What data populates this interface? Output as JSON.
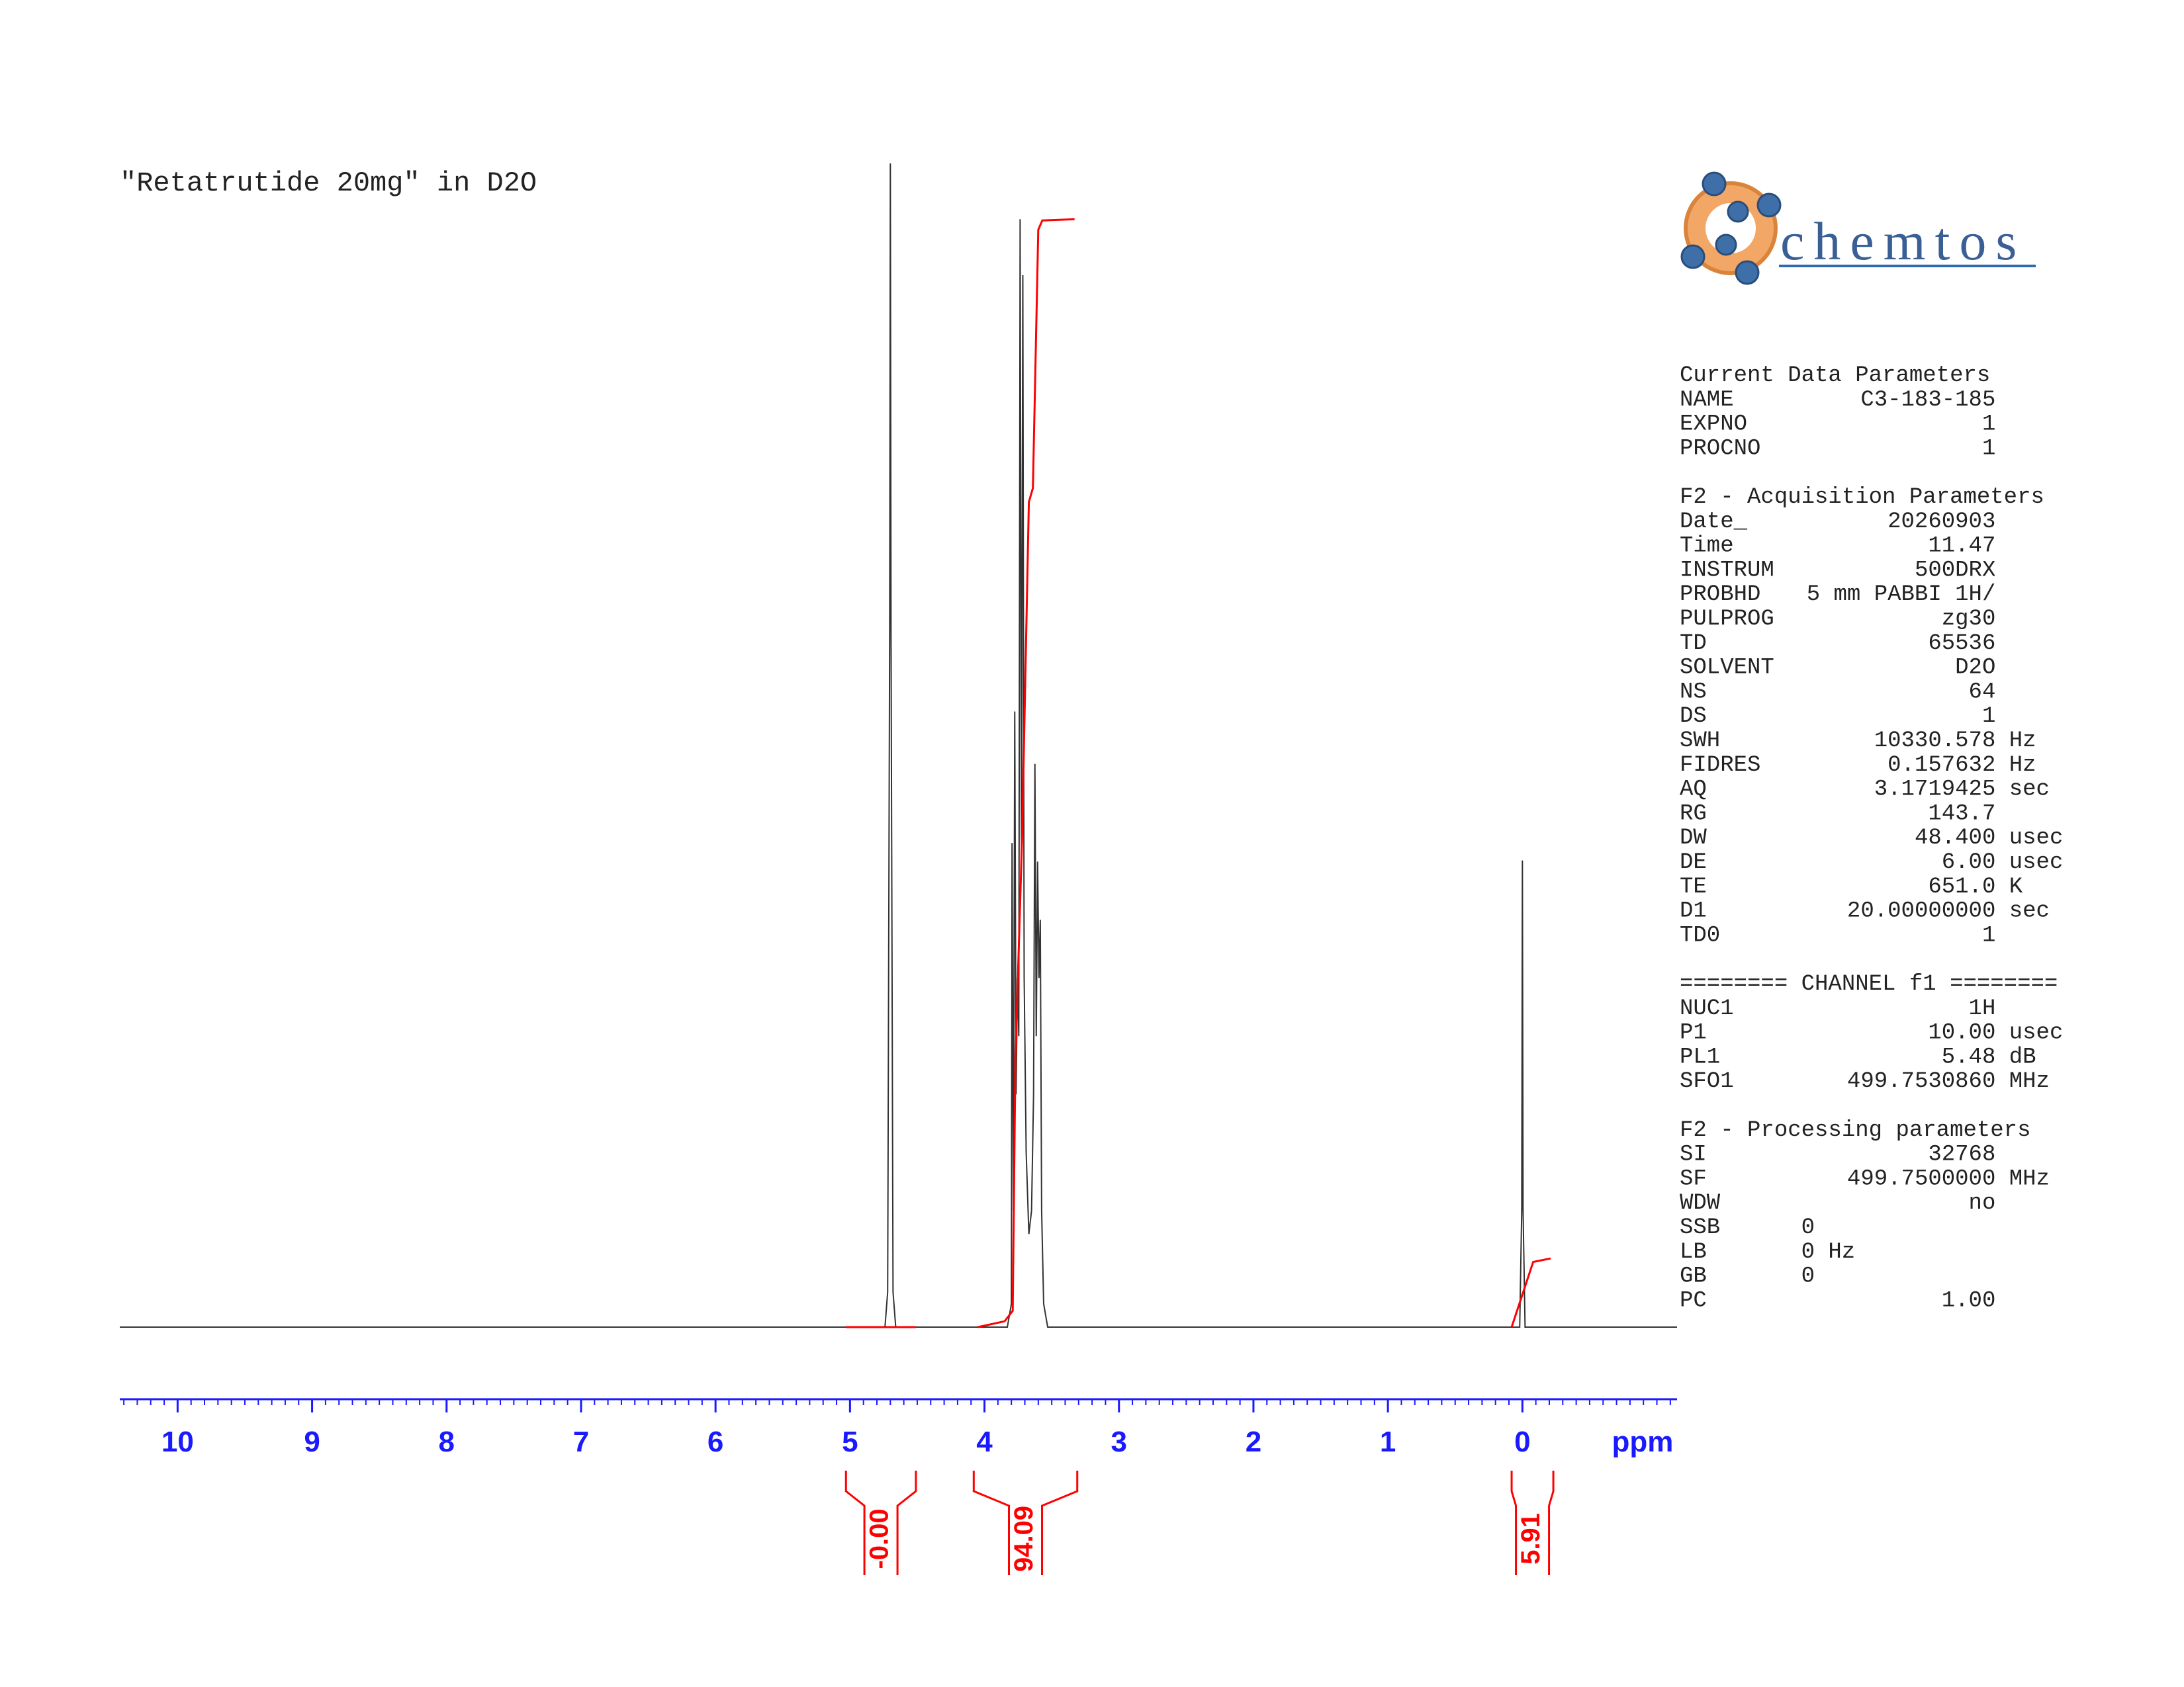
{
  "chart_data": {
    "type": "nmr",
    "title": "\"Retatrutide 20mg\" in D2O",
    "x_label": "ppm",
    "xlim": [
      10.43,
      -1.15
    ],
    "xticks": [
      10,
      9,
      8,
      7,
      6,
      5,
      4,
      3,
      2,
      1,
      0
    ],
    "minor_tick_step": 0.1,
    "ylim": [
      0,
      100
    ],
    "spectrum": {
      "color": "#333333",
      "x": [
        10.43,
        4.74,
        4.72,
        4.705,
        4.7,
        4.695,
        4.68,
        4.66,
        3.83,
        3.8,
        3.795,
        3.785,
        3.775,
        3.765,
        3.755,
        3.745,
        3.735,
        3.725,
        3.715,
        3.705,
        3.69,
        3.67,
        3.65,
        3.635,
        3.625,
        3.615,
        3.605,
        3.595,
        3.585,
        3.575,
        3.56,
        3.53,
        0.02,
        0.005,
        0.0,
        -0.005,
        -0.02,
        -1.15
      ],
      "values": [
        0,
        0,
        3,
        60,
        100,
        60,
        3,
        0,
        0,
        2,
        41.6,
        10,
        52.9,
        20,
        30,
        25,
        95.2,
        40,
        90.4,
        30,
        15,
        8,
        10,
        20,
        48.4,
        25,
        40,
        30,
        35,
        10,
        2,
        0,
        0,
        10,
        40.1,
        10,
        0,
        0
      ]
    },
    "integral_curves": [
      {
        "color": "#ff0000",
        "x": [
          5.03,
          4.51
        ],
        "values": [
          0,
          0
        ]
      },
      {
        "color": "#ff0000",
        "x": [
          4.05,
          3.85,
          3.79,
          3.77,
          3.72,
          3.67,
          3.64,
          3.6,
          3.57,
          3.33
        ],
        "values": [
          0,
          0.5,
          1.4,
          23,
          42.2,
          70.9,
          72.1,
          94.3,
          95.1,
          95.2
        ]
      },
      {
        "color": "#ff0000",
        "x": [
          0.08,
          -0.08,
          -0.21
        ],
        "values": [
          0,
          5.6,
          5.9
        ]
      }
    ],
    "integrals": {
      "color": "#ff0000",
      "ranges": [
        [
          5.03,
          4.51
        ],
        [
          4.08,
          3.31
        ],
        [
          0.08,
          -0.23
        ]
      ],
      "values": [
        0,
        94.09,
        5.91
      ],
      "value_labels": [
        "-0.00",
        "94.09",
        "5.91"
      ]
    }
  },
  "logo": {
    "text": "chemtos"
  },
  "parameters": [
    {
      "title": "Current Data Parameters",
      "rows": [
        {
          "key": "NAME",
          "value": "C3-183-185"
        },
        {
          "key": "EXPNO",
          "value": "1"
        },
        {
          "key": "PROCNO",
          "value": "1"
        }
      ]
    },
    {
      "title": "F2 - Acquisition Parameters",
      "rows": [
        {
          "key": "Date_",
          "value": "20260903"
        },
        {
          "key": "Time",
          "value": "11.47"
        },
        {
          "key": "INSTRUM",
          "value": "500DRX"
        },
        {
          "key": "PROBHD",
          "value": "5 mm PABBI 1H/"
        },
        {
          "key": "PULPROG",
          "value": "zg30"
        },
        {
          "key": "TD",
          "value": "65536"
        },
        {
          "key": "SOLVENT",
          "value": "D2O"
        },
        {
          "key": "NS",
          "value": "64"
        },
        {
          "key": "DS",
          "value": "1"
        },
        {
          "key": "SWH",
          "value": "10330.578",
          "unit": "Hz"
        },
        {
          "key": "FIDRES",
          "value": "0.157632",
          "unit": "Hz"
        },
        {
          "key": "AQ",
          "value": "3.1719425",
          "unit": "sec"
        },
        {
          "key": "RG",
          "value": "143.7"
        },
        {
          "key": "DW",
          "value": "48.400",
          "unit": "usec"
        },
        {
          "key": "DE",
          "value": "6.00",
          "unit": "usec"
        },
        {
          "key": "TE",
          "value": "651.0",
          "unit": "K"
        },
        {
          "key": "D1",
          "value": "20.00000000",
          "unit": "sec"
        },
        {
          "key": "TD0",
          "value": "1"
        }
      ]
    },
    {
      "title": "======== CHANNEL f1 ========",
      "rows": [
        {
          "key": "NUC1",
          "value": "1H"
        },
        {
          "key": "P1",
          "value": "10.00",
          "unit": "usec"
        },
        {
          "key": "PL1",
          "value": "5.48",
          "unit": "dB"
        },
        {
          "key": "SFO1",
          "value": "499.7530860",
          "unit": "MHz"
        }
      ]
    },
    {
      "title": "F2 - Processing parameters",
      "rows": [
        {
          "key": "SI",
          "value": "32768"
        },
        {
          "key": "SF",
          "value": "499.7500000",
          "unit": "MHz"
        },
        {
          "key": "WDW",
          "value": "no"
        },
        {
          "key": "SSB",
          "value": "0",
          "align": "left"
        },
        {
          "key": "LB",
          "value": "0",
          "unit": "Hz",
          "align": "left"
        },
        {
          "key": "GB",
          "value": "0",
          "align": "left"
        },
        {
          "key": "PC",
          "value": "1.00"
        }
      ]
    }
  ]
}
